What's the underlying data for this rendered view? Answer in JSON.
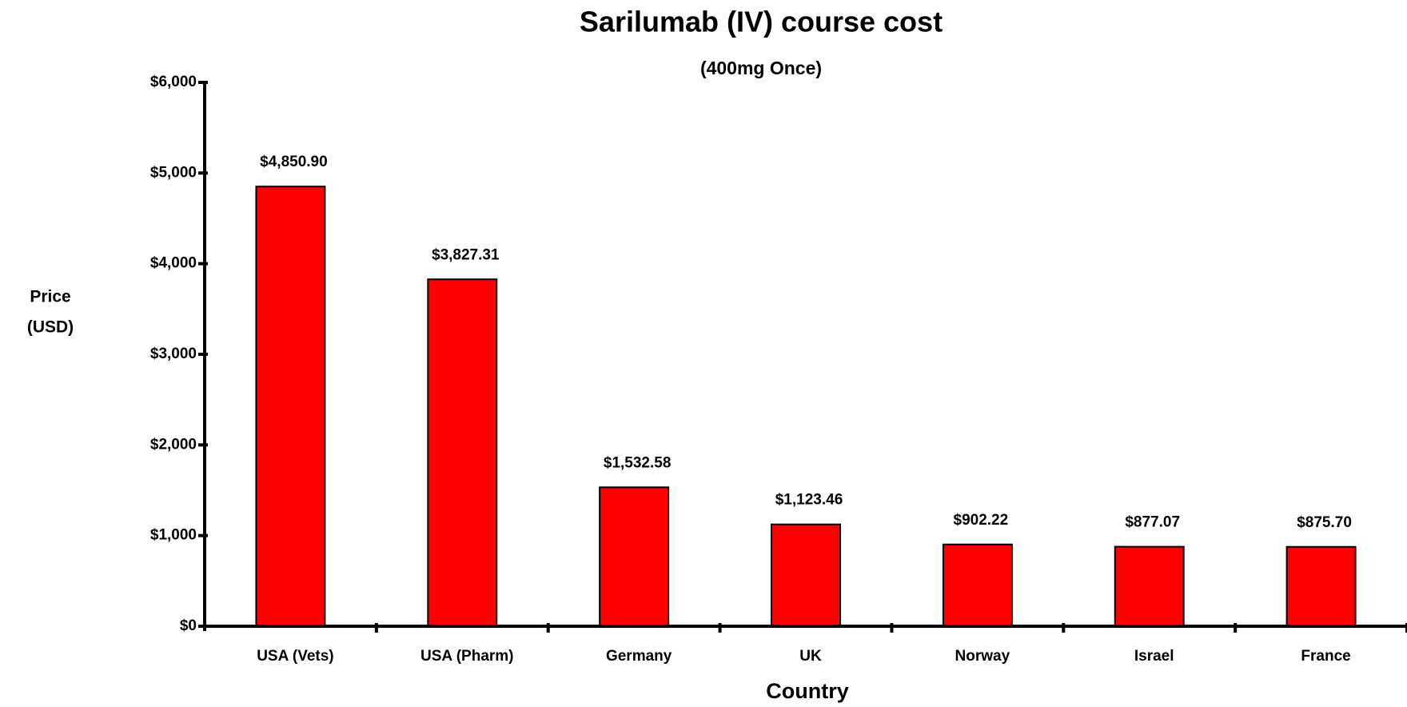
{
  "chart_data": {
    "type": "bar",
    "title": "Sarilumab (IV) course cost",
    "subtitle": "(400mg Once)",
    "xlabel": "Country",
    "ylabel": [
      "Price",
      "(USD)"
    ],
    "categories": [
      "USA (Vets)",
      "USA (Pharm)",
      "Germany",
      "UK",
      "Norway",
      "Israel",
      "France"
    ],
    "values": [
      4850.9,
      3827.31,
      1532.58,
      1123.46,
      902.22,
      877.07,
      875.7
    ],
    "value_labels": [
      "$4,850.90",
      "$3,827.31",
      "$1,532.58",
      "$1,123.46",
      "$902.22",
      "$877.07",
      "$875.70"
    ],
    "color": "#ff0000",
    "ylim": [
      0,
      6000
    ],
    "yticks": [
      {
        "value": 0,
        "label": "$0"
      },
      {
        "value": 1000,
        "label": "$1,000"
      },
      {
        "value": 2000,
        "label": "$2,000"
      },
      {
        "value": 3000,
        "label": "$3,000"
      },
      {
        "value": 4000,
        "label": "$4,000"
      },
      {
        "value": 5000,
        "label": "$5,000"
      },
      {
        "value": 6000,
        "label": "$6,000"
      }
    ],
    "grid": false
  }
}
